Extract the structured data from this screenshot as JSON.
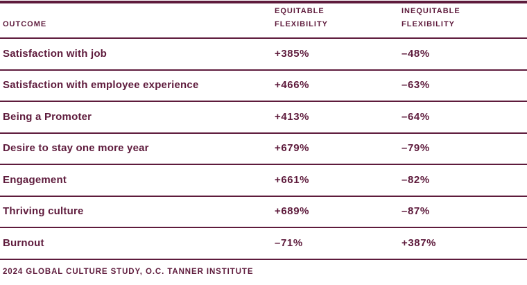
{
  "colors": {
    "maroon": "#5e1b3c",
    "background": "#ffffff"
  },
  "table": {
    "columns": {
      "outcome": {
        "label": "OUTCOME"
      },
      "equitable": {
        "line1": "EQUITABLE",
        "line2": "FLEXIBILITY"
      },
      "inequitable": {
        "line1": "INEQUITABLE",
        "line2": "FLEXIBILITY"
      }
    },
    "rows": [
      {
        "outcome": "Satisfaction with job",
        "equitable": "+385%",
        "inequitable": "–48%"
      },
      {
        "outcome": "Satisfaction with employee experience",
        "equitable": "+466%",
        "inequitable": "–63%"
      },
      {
        "outcome": "Being a Promoter",
        "equitable": "+413%",
        "inequitable": "–64%"
      },
      {
        "outcome": "Desire to stay one more year",
        "equitable": "+679%",
        "inequitable": "–79%"
      },
      {
        "outcome": "Engagement",
        "equitable": "+661%",
        "inequitable": "–82%"
      },
      {
        "outcome": "Thriving culture",
        "equitable": "+689%",
        "inequitable": "–87%"
      },
      {
        "outcome": "Burnout",
        "equitable": "–71%",
        "inequitable": "+387%"
      }
    ],
    "footer": "2024 GLOBAL CULTURE STUDY, O.C. TANNER INSTITUTE"
  },
  "chart_data": {
    "type": "table",
    "title": "",
    "categories": [
      "Satisfaction with job",
      "Satisfaction with employee experience",
      "Being a Promoter",
      "Desire to stay one more year",
      "Engagement",
      "Thriving culture",
      "Burnout"
    ],
    "series": [
      {
        "name": "Equitable Flexibility",
        "values": [
          385,
          466,
          413,
          679,
          661,
          689,
          -71
        ],
        "unit": "%"
      },
      {
        "name": "Inequitable Flexibility",
        "values": [
          -48,
          -63,
          -64,
          -79,
          -82,
          -87,
          387
        ],
        "unit": "%"
      }
    ],
    "source": "2024 GLOBAL CULTURE STUDY, O.C. TANNER INSTITUTE",
    "layout_hints": {
      "style": "ruled-table",
      "accent_color": "#5e1b3c"
    }
  }
}
